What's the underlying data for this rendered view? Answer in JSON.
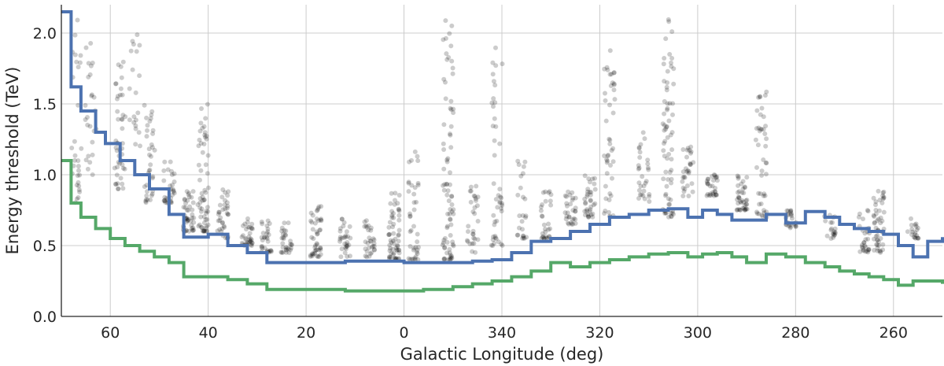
{
  "chart_data": {
    "type": "scatter",
    "xlabel": "Galactic Longitude (deg)",
    "ylabel": "Energy threshold (TeV)",
    "x_axis_direction": "decreasing longitude, wrapping through 0/360",
    "xlim": [
      70,
      250
    ],
    "ylim": [
      0.0,
      2.2
    ],
    "xticks": [
      {
        "label": "60",
        "value": 60
      },
      {
        "label": "40",
        "value": 40
      },
      {
        "label": "20",
        "value": 20
      },
      {
        "label": "0",
        "value": 0
      },
      {
        "label": "340",
        "value": 340
      },
      {
        "label": "320",
        "value": 320
      },
      {
        "label": "300",
        "value": 300
      },
      {
        "label": "280",
        "value": 280
      },
      {
        "label": "260",
        "value": 260
      }
    ],
    "yticks": [
      {
        "label": "0.0",
        "value": 0.0
      },
      {
        "label": "0.5",
        "value": 0.5
      },
      {
        "label": "1.0",
        "value": 1.0
      },
      {
        "label": "1.5",
        "value": 1.5
      },
      {
        "label": "2.0",
        "value": 2.0
      }
    ],
    "grid": true,
    "colors": {
      "series_1": "#4c72b0",
      "series_2": "#55a868",
      "points": "#000000"
    },
    "series": [
      {
        "type": "step",
        "color": "#4c72b0",
        "x": [
          70,
          68,
          66,
          63,
          61,
          58,
          55,
          52,
          48,
          45,
          40,
          36,
          32,
          28,
          24,
          18,
          12,
          6,
          0,
          356,
          350,
          346,
          342,
          338,
          334,
          330,
          326,
          322,
          318,
          314,
          310,
          306,
          302,
          299,
          296,
          293,
          290,
          286,
          282,
          278,
          274,
          271,
          268,
          265,
          262,
          259,
          256,
          253,
          250
        ],
        "y": [
          2.15,
          1.62,
          1.45,
          1.3,
          1.22,
          1.1,
          1.0,
          0.9,
          0.72,
          0.56,
          0.58,
          0.5,
          0.45,
          0.38,
          0.38,
          0.38,
          0.39,
          0.39,
          0.38,
          0.38,
          0.38,
          0.39,
          0.4,
          0.45,
          0.53,
          0.55,
          0.6,
          0.65,
          0.7,
          0.72,
          0.75,
          0.76,
          0.7,
          0.75,
          0.72,
          0.68,
          0.68,
          0.72,
          0.66,
          0.74,
          0.7,
          0.65,
          0.62,
          0.6,
          0.58,
          0.5,
          0.42,
          0.53,
          0.56
        ]
      },
      {
        "type": "step",
        "color": "#55a868",
        "x": [
          70,
          68,
          66,
          63,
          60,
          57,
          54,
          51,
          48,
          45,
          40,
          36,
          32,
          28,
          24,
          18,
          12,
          6,
          0,
          356,
          350,
          346,
          342,
          338,
          334,
          330,
          326,
          322,
          318,
          314,
          310,
          306,
          302,
          299,
          296,
          293,
          290,
          286,
          282,
          278,
          274,
          271,
          268,
          265,
          262,
          259,
          256,
          253,
          250
        ],
        "y": [
          1.1,
          0.8,
          0.7,
          0.62,
          0.55,
          0.5,
          0.46,
          0.42,
          0.38,
          0.28,
          0.28,
          0.26,
          0.23,
          0.19,
          0.19,
          0.19,
          0.18,
          0.18,
          0.18,
          0.19,
          0.21,
          0.23,
          0.25,
          0.28,
          0.32,
          0.38,
          0.35,
          0.38,
          0.4,
          0.42,
          0.44,
          0.45,
          0.42,
          0.44,
          0.45,
          0.42,
          0.38,
          0.44,
          0.42,
          0.38,
          0.35,
          0.32,
          0.3,
          0.28,
          0.26,
          0.22,
          0.25,
          0.25,
          0.23
        ]
      }
    ],
    "point_clusters": [
      {
        "x": 67,
        "ymin": 0.8,
        "ymax": 2.1,
        "n": 30
      },
      {
        "x": 64,
        "ymin": 1.0,
        "ymax": 2.0,
        "n": 25
      },
      {
        "x": 58,
        "ymin": 0.9,
        "ymax": 1.8,
        "n": 45
      },
      {
        "x": 55,
        "ymin": 1.2,
        "ymax": 2.0,
        "n": 20
      },
      {
        "x": 52,
        "ymin": 0.8,
        "ymax": 1.5,
        "n": 35
      },
      {
        "x": 48,
        "ymin": 0.8,
        "ymax": 1.1,
        "n": 30
      },
      {
        "x": 44,
        "ymin": 0.6,
        "ymax": 0.9,
        "n": 45
      },
      {
        "x": 41,
        "ymin": 0.6,
        "ymax": 1.5,
        "n": 60
      },
      {
        "x": 37,
        "ymin": 0.55,
        "ymax": 0.9,
        "n": 35
      },
      {
        "x": 32,
        "ymin": 0.5,
        "ymax": 0.7,
        "n": 35
      },
      {
        "x": 28,
        "ymin": 0.45,
        "ymax": 0.7,
        "n": 30
      },
      {
        "x": 24,
        "ymin": 0.45,
        "ymax": 0.7,
        "n": 30
      },
      {
        "x": 18,
        "ymin": 0.42,
        "ymax": 0.8,
        "n": 45
      },
      {
        "x": 12,
        "ymin": 0.42,
        "ymax": 0.7,
        "n": 30
      },
      {
        "x": 7,
        "ymin": 0.42,
        "ymax": 0.7,
        "n": 30
      },
      {
        "x": 2,
        "ymin": 0.4,
        "ymax": 0.9,
        "n": 60
      },
      {
        "x": 358,
        "ymin": 0.4,
        "ymax": 1.2,
        "n": 40
      },
      {
        "x": 351,
        "ymin": 0.4,
        "ymax": 2.1,
        "n": 80
      },
      {
        "x": 346,
        "ymin": 0.45,
        "ymax": 1.0,
        "n": 30
      },
      {
        "x": 341,
        "ymin": 0.5,
        "ymax": 2.1,
        "n": 45
      },
      {
        "x": 336,
        "ymin": 0.55,
        "ymax": 1.1,
        "n": 25
      },
      {
        "x": 331,
        "ymin": 0.55,
        "ymax": 0.9,
        "n": 30
      },
      {
        "x": 326,
        "ymin": 0.65,
        "ymax": 0.9,
        "n": 30
      },
      {
        "x": 322,
        "ymin": 0.7,
        "ymax": 1.0,
        "n": 35
      },
      {
        "x": 318,
        "ymin": 0.7,
        "ymax": 2.0,
        "n": 45
      },
      {
        "x": 311,
        "ymin": 0.8,
        "ymax": 1.3,
        "n": 30
      },
      {
        "x": 306,
        "ymin": 0.7,
        "ymax": 2.1,
        "n": 70
      },
      {
        "x": 302,
        "ymin": 0.85,
        "ymax": 1.2,
        "n": 30
      },
      {
        "x": 297,
        "ymin": 0.85,
        "ymax": 1.0,
        "n": 30
      },
      {
        "x": 291,
        "ymin": 0.75,
        "ymax": 1.0,
        "n": 40
      },
      {
        "x": 287,
        "ymin": 0.7,
        "ymax": 1.6,
        "n": 45
      },
      {
        "x": 281,
        "ymin": 0.62,
        "ymax": 0.75,
        "n": 25
      },
      {
        "x": 273,
        "ymin": 0.55,
        "ymax": 0.75,
        "n": 20
      },
      {
        "x": 266,
        "ymin": 0.45,
        "ymax": 0.8,
        "n": 30
      },
      {
        "x": 263,
        "ymin": 0.45,
        "ymax": 0.9,
        "n": 50
      },
      {
        "x": 256,
        "ymin": 0.55,
        "ymax": 0.7,
        "n": 20
      }
    ]
  }
}
